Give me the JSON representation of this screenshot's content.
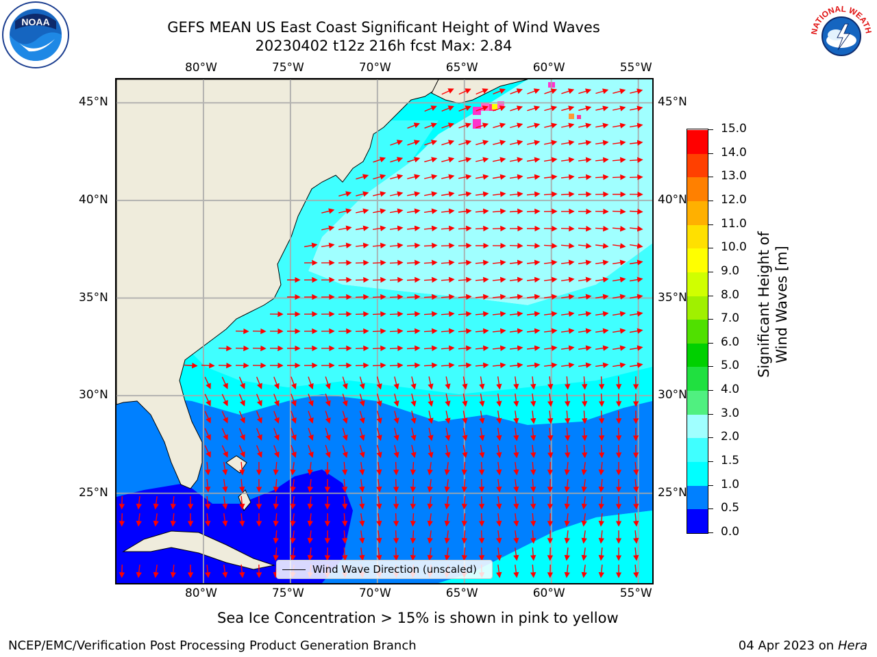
{
  "header": {
    "title_line1": "GEFS MEAN US East Coast Significant Height of Wind Waves",
    "title_line2": "20230402 t12z 216h fcst   Max: 2.84"
  },
  "logos": {
    "left": {
      "text": "NOAA",
      "icon": "noaa-logo-icon"
    },
    "right": {
      "text": "NATIONAL WEATHER SERVICE",
      "icon": "nws-logo-icon"
    }
  },
  "map": {
    "lon_labels": [
      "80°W",
      "75°W",
      "70°W",
      "65°W",
      "60°W",
      "55°W"
    ],
    "lat_labels": [
      "45°N",
      "40°N",
      "35°N",
      "30°N",
      "25°N"
    ],
    "lon_range": [
      -85,
      -54.2
    ],
    "lat_range": [
      20.4,
      46.2
    ],
    "land_color": "#efecdc",
    "grid": true
  },
  "legend": {
    "label": "Wind Wave Direction (unscaled)"
  },
  "colorbar": {
    "label": "Significant Height of Wind Waves [m]",
    "ticks": [
      "0.0",
      "0.5",
      "1.0",
      "1.5",
      "2.0",
      "3.0",
      "4.0",
      "5.0",
      "6.0",
      "7.0",
      "8.0",
      "9.0",
      "10.0",
      "11.0",
      "12.0",
      "13.0",
      "14.0",
      "15.0"
    ],
    "colors": [
      "#0000ff",
      "#0080ff",
      "#00ffff",
      "#40ffff",
      "#a0ffff",
      "#50f080",
      "#20e040",
      "#00d000",
      "#50e000",
      "#a0f000",
      "#d0ff00",
      "#ffff00",
      "#ffe000",
      "#ffb000",
      "#ff8000",
      "#ff4000",
      "#ff0000"
    ]
  },
  "footer": {
    "note": "Sea Ice Concentration > 15% is shown in pink to yellow",
    "left": "NCEP/EMC/Verification Post Processing Product Generation Branch",
    "date": "04 Apr 2023 on ",
    "machine": "Hera"
  }
}
